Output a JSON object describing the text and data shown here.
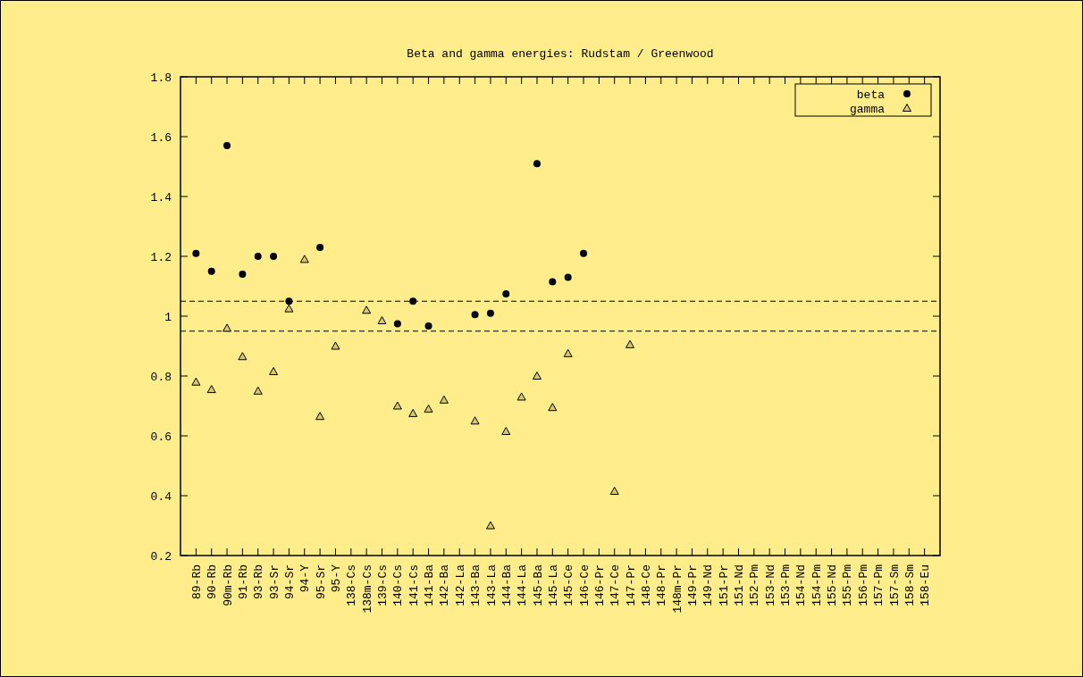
{
  "chart_data": {
    "type": "scatter",
    "title": "Beta and gamma energies: Rudstam / Greenwood",
    "categories": [
      "89-Rb",
      "90-Rb",
      "90m-Rb",
      "91-Rb",
      "93-Rb",
      "93-Sr",
      "94-Sr",
      "94-Y",
      "95-Sr",
      "95-Y",
      "138-Cs",
      "138m-Cs",
      "139-Cs",
      "140-Cs",
      "141-Cs",
      "141-Ba",
      "142-Ba",
      "142-La",
      "143-Ba",
      "143-La",
      "144-Ba",
      "144-La",
      "145-Ba",
      "145-La",
      "145-Ce",
      "146-Ce",
      "146-Pr",
      "147-Ce",
      "147-Pr",
      "148-Ce",
      "148-Pr",
      "148m-Pr",
      "149-Pr",
      "149-Nd",
      "151-Pr",
      "151-Nd",
      "152-Pm",
      "153-Nd",
      "153-Pm",
      "154-Nd",
      "154-Pm",
      "155-Nd",
      "155-Pm",
      "156-Pm",
      "157-Pm",
      "157-Sm",
      "158-Sm",
      "158-Eu"
    ],
    "series": [
      {
        "name": "beta",
        "color": "#000000",
        "marker": "circle",
        "values": [
          1.21,
          1.15,
          1.57,
          1.14,
          1.2,
          1.2,
          1.05,
          null,
          1.23,
          null,
          null,
          null,
          null,
          0.975,
          1.05,
          0.967,
          null,
          null,
          1.005,
          1.01,
          1.075,
          null,
          1.51,
          1.115,
          1.13,
          1.21,
          null,
          null,
          null,
          null,
          null,
          null,
          null,
          null,
          null,
          null,
          null,
          null,
          null,
          null,
          null,
          null,
          null,
          null,
          null,
          null,
          null,
          null
        ]
      },
      {
        "name": "gamma",
        "color": "#000000",
        "marker": "triangle",
        "values": [
          0.78,
          0.755,
          0.96,
          0.865,
          0.75,
          0.815,
          1.025,
          1.19,
          0.665,
          0.9,
          null,
          1.02,
          0.985,
          0.7,
          0.675,
          0.69,
          0.72,
          null,
          0.65,
          0.3,
          0.615,
          0.73,
          0.8,
          0.695,
          0.875,
          null,
          null,
          0.415,
          0.905,
          null,
          null,
          null,
          null,
          null,
          null,
          null,
          null,
          null,
          null,
          null,
          null,
          null,
          null,
          null,
          null,
          null,
          null,
          null
        ]
      }
    ],
    "ylim": [
      0.2,
      1.8
    ],
    "yticks": [
      0.2,
      0.4,
      0.6,
      0.8,
      1,
      1.2,
      1.4,
      1.6,
      1.8
    ],
    "ref_lines": [
      {
        "axis": "y",
        "value": 1.05,
        "color": "#000000",
        "line_style": "dashed"
      },
      {
        "axis": "y",
        "value": 0.95,
        "color": "#000000",
        "line_style": "dashed"
      }
    ],
    "legend": "top right",
    "grid": false
  }
}
